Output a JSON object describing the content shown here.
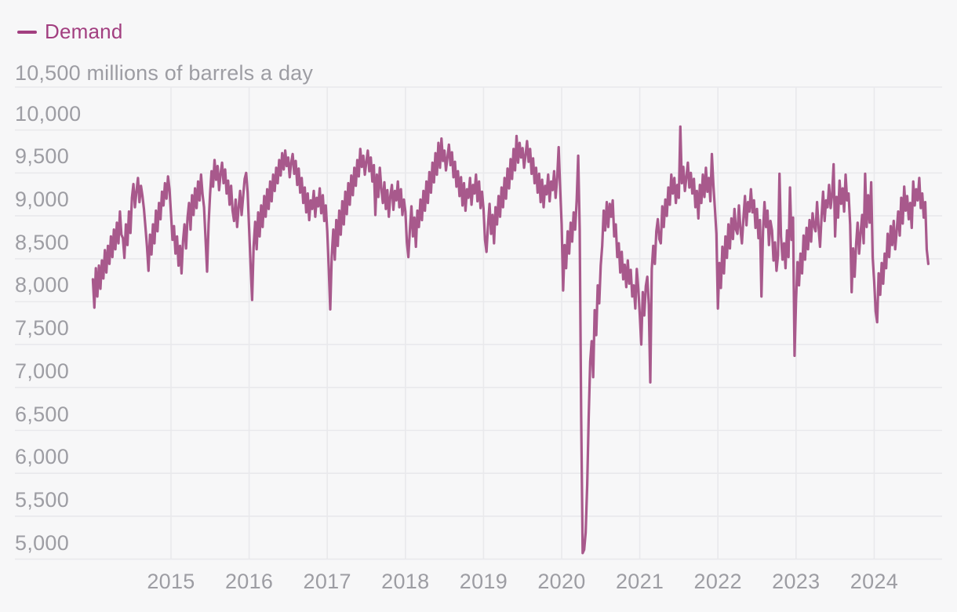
{
  "legend": {
    "label": "Demand"
  },
  "y_axis": {
    "top_label": "10,500 millions of barrels a day",
    "tick_labels": [
      "10,000",
      "9,500",
      "9,000",
      "8,500",
      "8,000",
      "7,500",
      "7,000",
      "6,500",
      "6,000",
      "5,500",
      "5,000"
    ]
  },
  "x_axis": {
    "tick_labels": [
      "2015",
      "2016",
      "2017",
      "2018",
      "2019",
      "2020",
      "2021",
      "2022",
      "2023",
      "2024"
    ]
  },
  "colors": {
    "background": "#f7f7f8",
    "grid": "#e9e9ec",
    "line": "#a8598c",
    "legend": "#a23f80",
    "axis_text": "#9d9da3"
  },
  "chart_data": {
    "type": "line",
    "title": "Demand",
    "ylabel": "millions of barrels a day",
    "ylim": [
      5000,
      10500
    ],
    "gridline_values": [
      10500,
      10000,
      9500,
      9000,
      8500,
      8000,
      7500,
      7000,
      6500,
      6000,
      5500,
      5000
    ],
    "y_tick_values": [
      10000,
      9500,
      9000,
      8500,
      8000,
      7500,
      7000,
      6500,
      6000,
      5500,
      5000
    ],
    "x_tick_values": [
      2015,
      2016,
      2017,
      2018,
      2019,
      2020,
      2021,
      2022,
      2023,
      2024
    ],
    "grid": true,
    "legend_position": "top-left",
    "points_per_year": 52,
    "series": [
      {
        "name": "Demand",
        "start_year": 2014,
        "weekly_values": [
          8260,
          7930,
          8390,
          8060,
          8420,
          8150,
          8480,
          8270,
          8600,
          8340,
          8650,
          8440,
          8760,
          8520,
          8840,
          8610,
          8920,
          8680,
          9050,
          8780,
          8740,
          8510,
          8900,
          8660,
          9050,
          8800,
          9210,
          9370,
          9100,
          9280,
          9440,
          9160,
          9350,
          9230,
          9080,
          8870,
          8640,
          8360,
          8780,
          8550,
          8900,
          8680,
          9060,
          8820,
          9150,
          8960,
          9280,
          9120,
          9380,
          9200,
          9460,
          9310,
          9020,
          8720,
          8880,
          8560,
          8760,
          8420,
          8650,
          8330,
          8700,
          8900,
          8620,
          8980,
          9150,
          8840,
          9240,
          9010,
          9320,
          9090,
          9400,
          9180,
          9480,
          9250,
          9100,
          8720,
          8350,
          8900,
          9250,
          9520,
          9340,
          9650,
          9420,
          9580,
          9300,
          9490,
          9620,
          9380,
          9540,
          9260,
          9410,
          9130,
          9350,
          9060,
          8940,
          9190,
          8870,
          9100,
          9290,
          9010,
          9220,
          9430,
          9500,
          9270,
          8850,
          8420,
          8020,
          8640,
          8930,
          8610,
          9040,
          8760,
          9120,
          8870,
          9230,
          8990,
          9310,
          9080,
          9400,
          9170,
          9480,
          9290,
          9560,
          9380,
          9650,
          9470,
          9730,
          9540,
          9760,
          9580,
          9680,
          9450,
          9620,
          9720,
          9490,
          9640,
          9360,
          9550,
          9270,
          9440,
          9150,
          9330,
          9040,
          9260,
          8950,
          9180,
          9080,
          9290,
          8990,
          9210,
          9110,
          9320,
          9030,
          9240,
          8940,
          9120,
          8820,
          8390,
          7910,
          8530,
          8840,
          8490,
          8950,
          8650,
          9060,
          8780,
          9170,
          8900,
          9280,
          9020,
          9380,
          9130,
          9470,
          9240,
          9560,
          9350,
          9650,
          9460,
          9780,
          9570,
          9700,
          9480,
          9630,
          9760,
          9520,
          9680,
          9400,
          9590,
          9010,
          9480,
          9220,
          9560,
          9310,
          9150,
          9390,
          9080,
          9300,
          8990,
          9230,
          9360,
          9070,
          9290,
          9180,
          9400,
          9100,
          9310,
          9010,
          9190,
          9050,
          8690,
          8520,
          8830,
          9110,
          8760,
          8980,
          8640,
          9060,
          8870,
          9190,
          8950,
          9290,
          9060,
          9400,
          9150,
          9510,
          9270,
          9620,
          9390,
          9730,
          9480,
          9850,
          9560,
          9900,
          9640,
          9760,
          9530,
          9680,
          9830,
          9590,
          9740,
          9450,
          9630,
          9340,
          9520,
          9230,
          9450,
          9120,
          9380,
          9060,
          9310,
          9210,
          9440,
          9130,
          9360,
          9260,
          9480,
          9170,
          9400,
          9090,
          9280,
          9080,
          8720,
          8580,
          8890,
          9140,
          8790,
          9010,
          8680,
          9100,
          8900,
          9230,
          8990,
          9330,
          9100,
          9440,
          9200,
          9550,
          9320,
          9660,
          9430,
          9780,
          9530,
          9930,
          9620,
          9850,
          9680,
          9790,
          9560,
          9710,
          9870,
          9630,
          9780,
          9490,
          9670,
          9380,
          9560,
          9270,
          9490,
          9160,
          9420,
          9100,
          9350,
          9250,
          9480,
          9170,
          9400,
          9300,
          9520,
          9210,
          9440,
          9800,
          9320,
          8900,
          8130,
          8660,
          8390,
          8820,
          8560,
          8920,
          8700,
          9040,
          8840,
          9190,
          9700,
          8840,
          6660,
          5070,
          5110,
          5310,
          5870,
          6660,
          7300,
          7540,
          7120,
          7900,
          7610,
          8190,
          7980,
          8420,
          8650,
          9060,
          8830,
          9160,
          8870,
          9140,
          8990,
          9180,
          8760,
          8900,
          8520,
          8680,
          8340,
          8580,
          8260,
          8430,
          8170,
          8480,
          8210,
          8370,
          8060,
          8190,
          7920,
          8380,
          8150,
          7850,
          7500,
          8110,
          7840,
          8180,
          8290,
          7960,
          7060,
          8380,
          8650,
          8440,
          8820,
          8960,
          8730,
          8680,
          9110,
          8870,
          9190,
          9000,
          9330,
          9130,
          9480,
          9260,
          9440,
          9150,
          9360,
          9210,
          10040,
          9380,
          9570,
          9290,
          9450,
          9620,
          9330,
          9500,
          9260,
          9430,
          9100,
          9290,
          8970,
          9360,
          9150,
          9480,
          9220,
          9560,
          9280,
          9440,
          9170,
          9720,
          9350,
          9080,
          8790,
          7920,
          8450,
          8160,
          8640,
          8330,
          8760,
          8510,
          8900,
          8620,
          8970,
          8730,
          9080,
          8840,
          8790,
          9120,
          8850,
          8680,
          8980,
          9230,
          8890,
          9160,
          9050,
          9310,
          9040,
          9180,
          8860,
          9080,
          8740,
          8950,
          8060,
          8820,
          9160,
          8870,
          9060,
          8660,
          8940,
          8830,
          8480,
          8690,
          8360,
          8540,
          9490,
          8760,
          8490,
          8680,
          8390,
          8830,
          8520,
          9330,
          8720,
          8980,
          7370,
          8020,
          8460,
          8190,
          8560,
          8330,
          8770,
          8490,
          8860,
          8610,
          8950,
          8700,
          9030,
          8880,
          8820,
          9160,
          8870,
          8640,
          9000,
          9280,
          8940,
          9180,
          9100,
          9360,
          9090,
          9250,
          9600,
          8760,
          9220,
          8980,
          9410,
          9140,
          9320,
          9050,
          9480,
          9180,
          9260,
          8900,
          8110,
          8620,
          8290,
          8670,
          8920,
          8560,
          8810,
          9010,
          8680,
          9490,
          8870,
          9240,
          8920,
          9390,
          8520,
          8240,
          7890,
          7760,
          8330,
          8080,
          8450,
          8210,
          8560,
          8390,
          8790,
          8520,
          8880,
          8660,
          8940,
          8610,
          8820,
          9050,
          8770,
          9210,
          8910,
          9340,
          9060,
          9230,
          8960,
          9150,
          8860,
          9400,
          9120,
          9310,
          9180,
          9440,
          9090,
          9260,
          8980,
          9160,
          8610,
          8440
        ]
      }
    ]
  }
}
